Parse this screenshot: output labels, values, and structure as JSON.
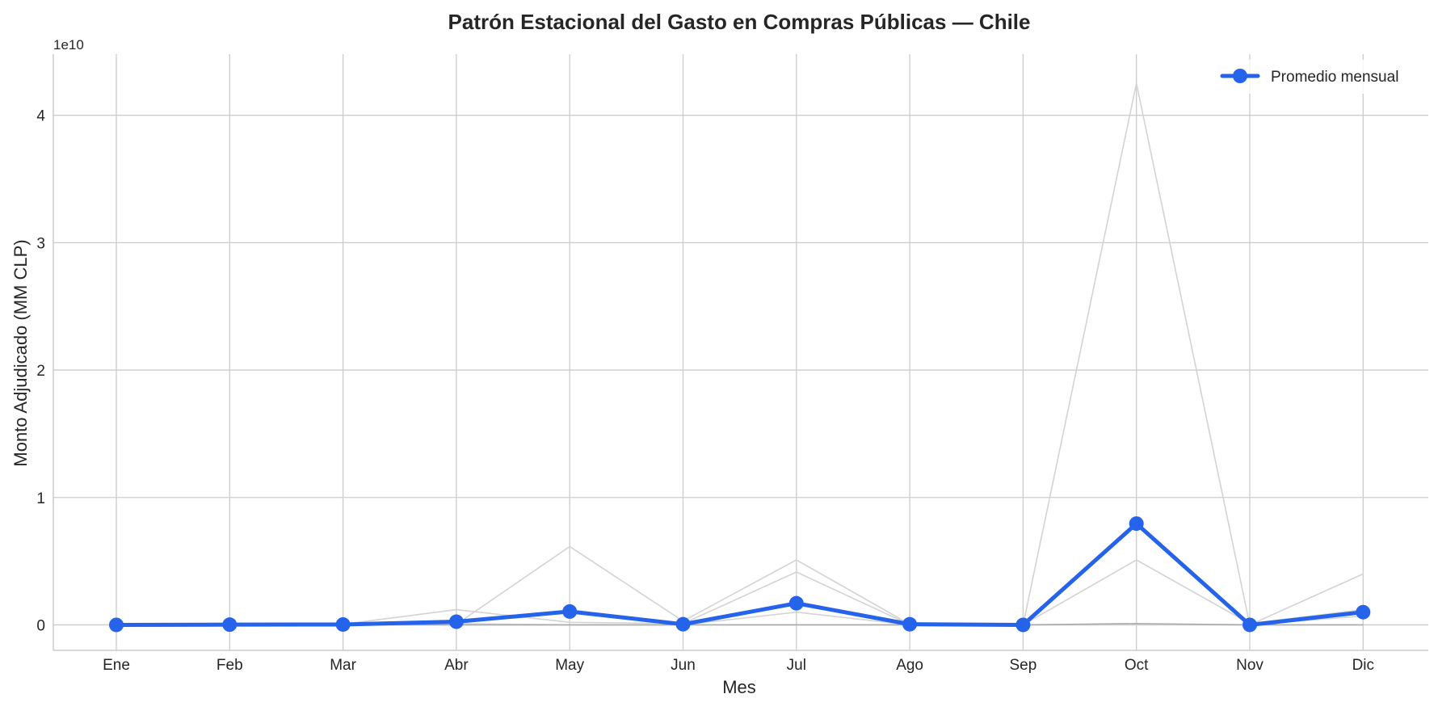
{
  "chart_data": {
    "type": "line",
    "title": "Patrón Estacional del Gasto en Compras Públicas — Chile",
    "xlabel": "Mes",
    "ylabel": "Monto Adjudicado (MM CLP)",
    "y_offset_text": "1e10",
    "categories": [
      "Ene",
      "Feb",
      "Mar",
      "Abr",
      "May",
      "Jun",
      "Jul",
      "Ago",
      "Sep",
      "Oct",
      "Nov",
      "Dic"
    ],
    "yticks": [
      0,
      1,
      2,
      3,
      4
    ],
    "ylim": [
      -2000000000,
      44800000000
    ],
    "grid": true,
    "legend_position": "top-right",
    "series": [
      {
        "name": "Promedio mensual",
        "color": "#2563eb",
        "values": [
          0,
          20000000,
          30000000,
          250000000,
          1050000000,
          50000000,
          1700000000,
          50000000,
          0,
          7950000000,
          0,
          1000000000
        ]
      }
    ],
    "background_series": [
      {
        "color": "#d3d3d3",
        "values": [
          0,
          20000000,
          30000000,
          50000000,
          6150000000,
          300000000,
          5100000000,
          50000000,
          0,
          42500000000,
          0,
          4000000000
        ]
      },
      {
        "color": "#d3d3d3",
        "values": [
          0,
          0,
          50000000,
          1200000000,
          200000000,
          100000000,
          4150000000,
          20000000,
          0,
          5100000000,
          100000000,
          1200000000
        ]
      },
      {
        "color": "#d3d3d3",
        "values": [
          0,
          0,
          0,
          100000000,
          0,
          0,
          1000000000,
          0,
          0,
          0,
          0,
          700000000
        ]
      },
      {
        "color": "#a9a9a9",
        "values": [
          0,
          0,
          0,
          0,
          0,
          0,
          0,
          0,
          0,
          100000000,
          0,
          0
        ]
      }
    ]
  }
}
